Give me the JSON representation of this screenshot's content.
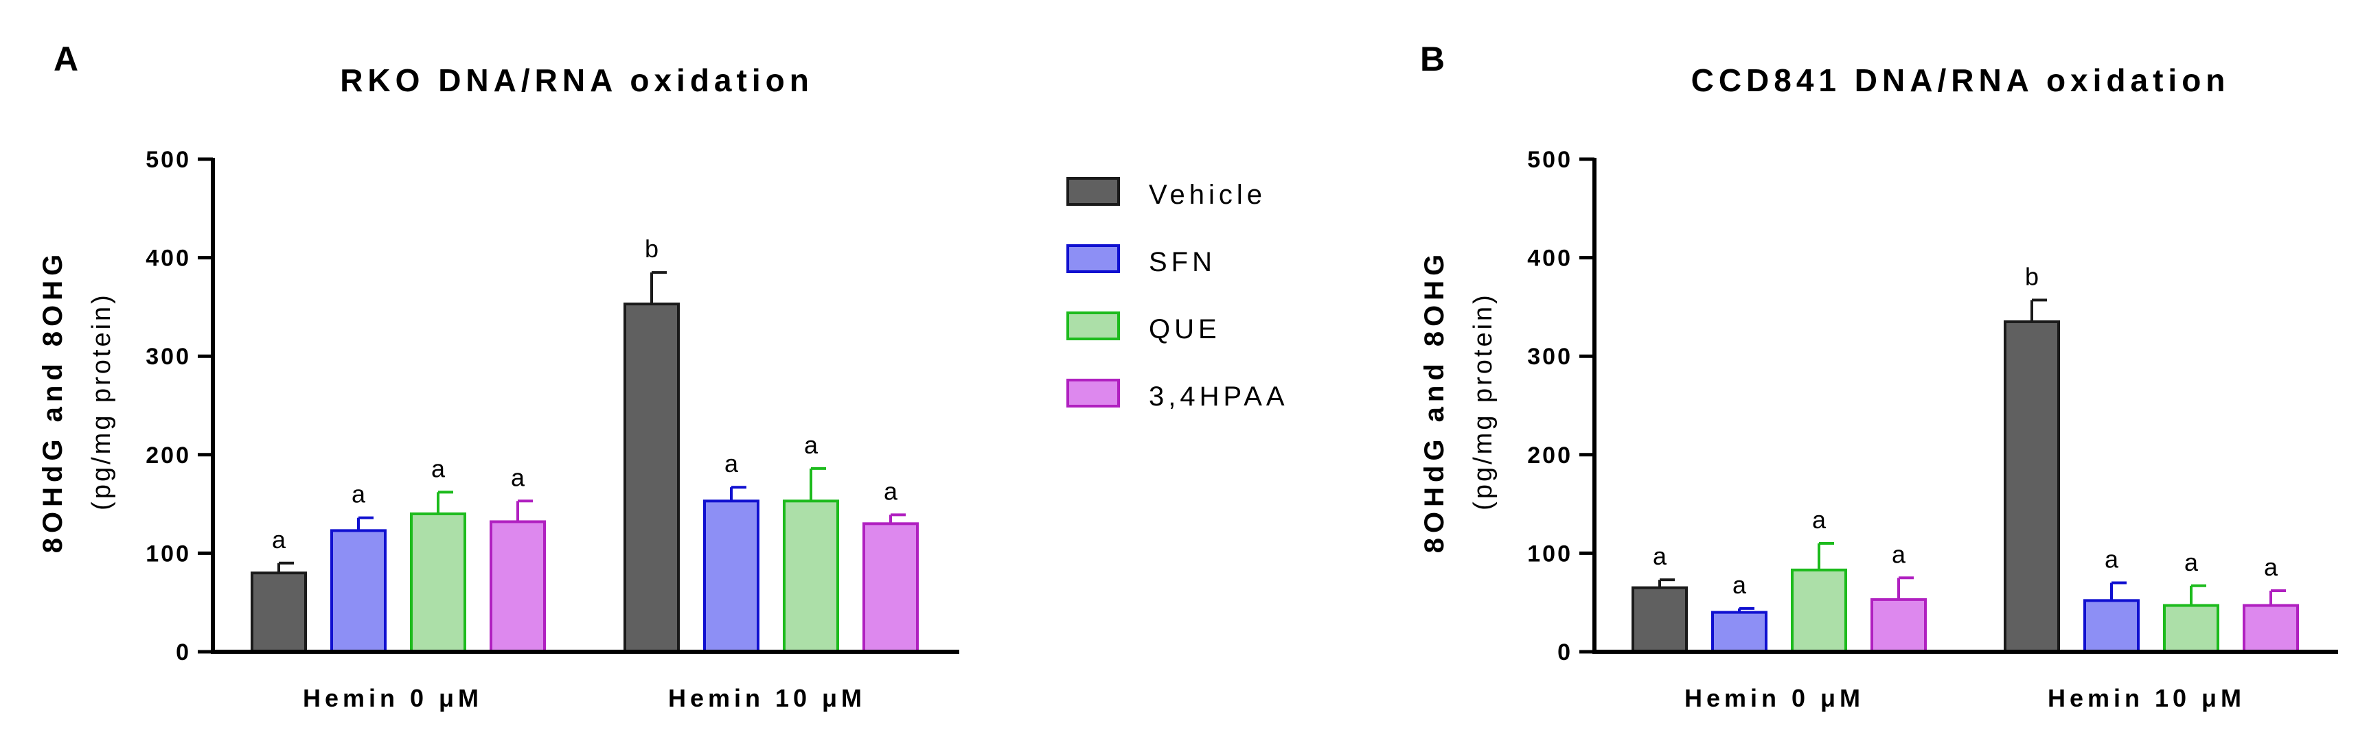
{
  "legend": [
    {
      "name": "Vehicle",
      "fill": "#606060",
      "stroke": "#1a1a1a"
    },
    {
      "name": "SFN",
      "fill": "#8d8ff5",
      "stroke": "#1010d0"
    },
    {
      "name": "QUE",
      "fill": "#acdfa8",
      "stroke": "#1dbb1d"
    },
    {
      "name": "3,4HPAA",
      "fill": "#dd88ee",
      "stroke": "#b020c0"
    }
  ],
  "chart_data": [
    {
      "type": "bar",
      "panel": "A",
      "title": "RKO DNA/RNA oxidation",
      "ylabel": "8OHdG and 8OHG",
      "ylabel_unit": "(pg/mg protein)",
      "xlabel": "",
      "ylim": [
        0,
        500
      ],
      "yticks": [
        0,
        100,
        200,
        300,
        400,
        500
      ],
      "categories": [
        "Hemin 0 μM",
        "Hemin 10 μM"
      ],
      "series": [
        {
          "name": "Vehicle",
          "values": [
            80,
            353
          ],
          "errors": [
            10,
            32
          ],
          "labels": [
            "a",
            "b"
          ]
        },
        {
          "name": "SFN",
          "values": [
            123,
            153
          ],
          "errors": [
            13,
            14
          ],
          "labels": [
            "a",
            "a"
          ]
        },
        {
          "name": "QUE",
          "values": [
            140,
            153
          ],
          "errors": [
            22,
            33
          ],
          "labels": [
            "a",
            "a"
          ]
        },
        {
          "name": "3,4HPAA",
          "values": [
            132,
            130
          ],
          "errors": [
            21,
            9
          ],
          "labels": [
            "a",
            "a"
          ]
        }
      ]
    },
    {
      "type": "bar",
      "panel": "B",
      "title": "CCD841 DNA/RNA oxidation",
      "ylabel": "8OHdG and 8OHG",
      "ylabel_unit": "(pg/mg protein)",
      "xlabel": "",
      "ylim": [
        0,
        500
      ],
      "yticks": [
        0,
        100,
        200,
        300,
        400,
        500
      ],
      "categories": [
        "Hemin 0 μM",
        "Hemin 10 μM"
      ],
      "series": [
        {
          "name": "Vehicle",
          "values": [
            65,
            335
          ],
          "errors": [
            8,
            22
          ],
          "labels": [
            "a",
            "b"
          ]
        },
        {
          "name": "SFN",
          "values": [
            40,
            52
          ],
          "errors": [
            4,
            18
          ],
          "labels": [
            "a",
            "a"
          ]
        },
        {
          "name": "QUE",
          "values": [
            83,
            47
          ],
          "errors": [
            27,
            20
          ],
          "labels": [
            "a",
            "a"
          ]
        },
        {
          "name": "3,4HPAA",
          "values": [
            53,
            47
          ],
          "errors": [
            22,
            15
          ],
          "labels": [
            "a",
            "a"
          ]
        }
      ]
    }
  ]
}
